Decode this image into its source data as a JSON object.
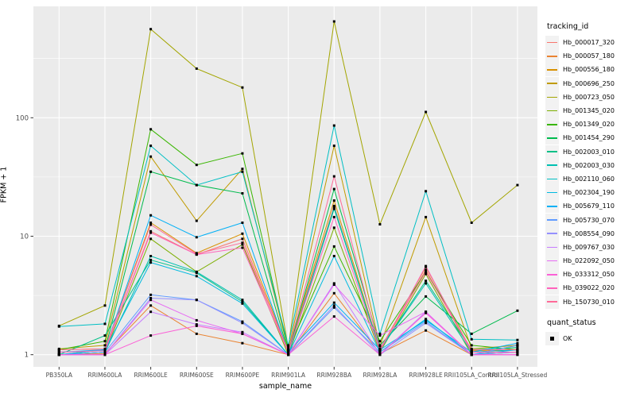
{
  "colors": {
    "panel_bg": "#EBEBEB",
    "grid": "#FFFFFF",
    "tick_mark": "#333333",
    "tick_label": "#4D4D4D",
    "point": "#000000",
    "legend_key_bg": "#F2F2F2"
  },
  "chart_data": {
    "type": "line",
    "title": "",
    "xlabel": "sample_name",
    "ylabel": "FPKM + 1",
    "y_scale": "log10",
    "ylim": [
      0.79,
      870
    ],
    "grid": true,
    "legend_position": "right",
    "legend_title": "tracking_id",
    "y_ticks": [
      {
        "label": "1",
        "value": 1
      },
      {
        "label": "10",
        "value": 10
      },
      {
        "label": "100",
        "value": 100
      }
    ],
    "y_minor_ticks": [
      3.162,
      31.62,
      316.2
    ],
    "categories": [
      "PB350LA",
      "RRIM600LA",
      "RRIM600LE",
      "RRIM600SE",
      "RRIM600PE",
      "RRIM901LA",
      "RRIM928BA",
      "RRIM928LA",
      "RRIM928LE",
      "RRII105LA_Control",
      "RRII105LA_Stressed"
    ],
    "series": [
      {
        "name": "Hb_000017_320",
        "color": "#F8766D",
        "values": [
          1.05,
          1.08,
          11,
          7.0,
          9.5,
          1.05,
          18,
          1.08,
          5.2,
          1.05,
          1.05
        ]
      },
      {
        "name": "Hb_000057_180",
        "color": "#EA8331",
        "values": [
          1.0,
          1.02,
          2.6,
          1.5,
          1.25,
          1.0,
          3.3,
          1.02,
          1.6,
          1.0,
          1.2
        ]
      },
      {
        "name": "Hb_000556_180",
        "color": "#D89000",
        "values": [
          1.1,
          1.12,
          13,
          7.2,
          10.5,
          1.08,
          20,
          1.1,
          5.5,
          1.08,
          1.1
        ]
      },
      {
        "name": "Hb_000696_250",
        "color": "#C09B00",
        "values": [
          1.12,
          1.2,
          47,
          13.5,
          37,
          1.1,
          58,
          1.18,
          14.5,
          1.12,
          1.2
        ]
      },
      {
        "name": "Hb_000723_050",
        "color": "#A3A500",
        "values": [
          1.75,
          2.6,
          560,
          260,
          180,
          1.15,
          650,
          12.6,
          112,
          13,
          27
        ]
      },
      {
        "name": "Hb_001345_020",
        "color": "#7CAE00",
        "values": [
          1.0,
          1.05,
          9.5,
          5.0,
          8.5,
          1.0,
          11.8,
          1.05,
          4.8,
          1.0,
          1.05
        ]
      },
      {
        "name": "Hb_001349_020",
        "color": "#39B600",
        "values": [
          1.1,
          1.3,
          80,
          40,
          50,
          1.1,
          8.2,
          1.3,
          5.0,
          1.2,
          1.1
        ]
      },
      {
        "name": "Hb_001454_290",
        "color": "#00BB4E",
        "values": [
          1.0,
          1.1,
          35,
          27,
          23,
          1.05,
          25,
          1.2,
          3.1,
          1.5,
          2.35
        ]
      },
      {
        "name": "Hb_002003_010",
        "color": "#00C087",
        "values": [
          1.0,
          1.45,
          6.3,
          4.9,
          2.8,
          1.0,
          17,
          1.1,
          4.2,
          1.1,
          1.15
        ]
      },
      {
        "name": "Hb_002003_030",
        "color": "#00C0B2",
        "values": [
          1.0,
          1.05,
          6.8,
          5.0,
          2.9,
          1.0,
          17.5,
          1.1,
          4.0,
          1.05,
          1.1
        ]
      },
      {
        "name": "Hb_002110_060",
        "color": "#00BFC4",
        "values": [
          1.73,
          1.82,
          58,
          27,
          35,
          1.2,
          86,
          1.5,
          24,
          1.35,
          1.33
        ]
      },
      {
        "name": "Hb_002304_190",
        "color": "#00BAE0",
        "values": [
          1.0,
          1.1,
          6.0,
          4.6,
          2.7,
          1.0,
          6.8,
          1.05,
          2.0,
          1.0,
          1.1
        ]
      },
      {
        "name": "Hb_005679_110",
        "color": "#00B0F6",
        "values": [
          1.05,
          1.1,
          15,
          9.8,
          13,
          1.05,
          2.75,
          1.1,
          1.95,
          1.05,
          1.25
        ]
      },
      {
        "name": "Hb_005730_070",
        "color": "#619CFF",
        "values": [
          1.0,
          1.05,
          3.2,
          2.9,
          1.9,
          1.0,
          2.5,
          1.05,
          1.9,
          1.0,
          1.2
        ]
      },
      {
        "name": "Hb_008554_090",
        "color": "#9590FF",
        "values": [
          1.0,
          1.0,
          3.0,
          2.9,
          1.85,
          1.0,
          2.6,
          1.0,
          1.85,
          1.0,
          1.05
        ]
      },
      {
        "name": "Hb_009767_030",
        "color": "#C77CFF",
        "values": [
          1.0,
          1.0,
          2.3,
          1.8,
          1.55,
          1.0,
          4.0,
          1.0,
          2.3,
          1.0,
          1.0
        ]
      },
      {
        "name": "Hb_022092_050",
        "color": "#E76BF3",
        "values": [
          1.0,
          1.0,
          2.9,
          1.95,
          1.5,
          1.0,
          3.9,
          1.45,
          2.3,
          1.0,
          1.0
        ]
      },
      {
        "name": "Hb_033312_050",
        "color": "#FB61D7",
        "values": [
          1.0,
          1.0,
          1.45,
          1.75,
          1.5,
          1.0,
          2.1,
          1.0,
          2.25,
          1.0,
          1.0
        ]
      },
      {
        "name": "Hb_039022_020",
        "color": "#FF62BC",
        "values": [
          1.05,
          1.08,
          10.7,
          7.0,
          8.0,
          1.05,
          14.5,
          1.08,
          5.6,
          1.05,
          1.05
        ]
      },
      {
        "name": "Hb_150730_010",
        "color": "#FF6A98",
        "values": [
          1.1,
          1.12,
          12.5,
          7.1,
          8.8,
          1.08,
          32,
          1.12,
          5.0,
          1.1,
          1.1
        ]
      }
    ],
    "quant_status": {
      "title": "quant_status",
      "items": [
        {
          "label": "OK",
          "marker": "black-square"
        }
      ]
    }
  }
}
